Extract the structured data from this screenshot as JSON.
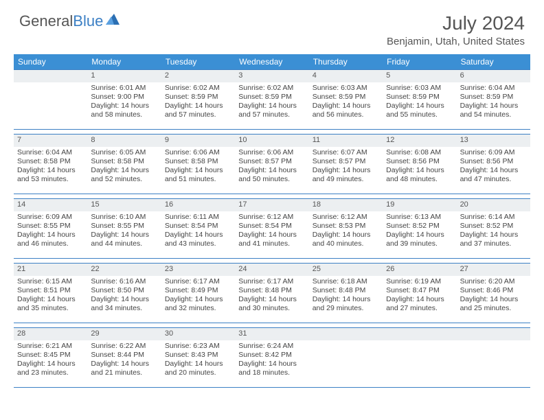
{
  "logo": {
    "text1": "General",
    "text2": "Blue"
  },
  "title": "July 2024",
  "location": "Benjamin, Utah, United States",
  "colors": {
    "header_bg": "#3b8fd4",
    "header_text": "#ffffff",
    "border": "#3b7fc4",
    "daynum_bg": "#eceff1",
    "text": "#444444"
  },
  "day_names": [
    "Sunday",
    "Monday",
    "Tuesday",
    "Wednesday",
    "Thursday",
    "Friday",
    "Saturday"
  ],
  "weeks": [
    [
      {
        "n": "",
        "sr": "",
        "ss": "",
        "dl": ""
      },
      {
        "n": "1",
        "sr": "Sunrise: 6:01 AM",
        "ss": "Sunset: 9:00 PM",
        "dl": "Daylight: 14 hours and 58 minutes."
      },
      {
        "n": "2",
        "sr": "Sunrise: 6:02 AM",
        "ss": "Sunset: 8:59 PM",
        "dl": "Daylight: 14 hours and 57 minutes."
      },
      {
        "n": "3",
        "sr": "Sunrise: 6:02 AM",
        "ss": "Sunset: 8:59 PM",
        "dl": "Daylight: 14 hours and 57 minutes."
      },
      {
        "n": "4",
        "sr": "Sunrise: 6:03 AM",
        "ss": "Sunset: 8:59 PM",
        "dl": "Daylight: 14 hours and 56 minutes."
      },
      {
        "n": "5",
        "sr": "Sunrise: 6:03 AM",
        "ss": "Sunset: 8:59 PM",
        "dl": "Daylight: 14 hours and 55 minutes."
      },
      {
        "n": "6",
        "sr": "Sunrise: 6:04 AM",
        "ss": "Sunset: 8:59 PM",
        "dl": "Daylight: 14 hours and 54 minutes."
      }
    ],
    [
      {
        "n": "7",
        "sr": "Sunrise: 6:04 AM",
        "ss": "Sunset: 8:58 PM",
        "dl": "Daylight: 14 hours and 53 minutes."
      },
      {
        "n": "8",
        "sr": "Sunrise: 6:05 AM",
        "ss": "Sunset: 8:58 PM",
        "dl": "Daylight: 14 hours and 52 minutes."
      },
      {
        "n": "9",
        "sr": "Sunrise: 6:06 AM",
        "ss": "Sunset: 8:58 PM",
        "dl": "Daylight: 14 hours and 51 minutes."
      },
      {
        "n": "10",
        "sr": "Sunrise: 6:06 AM",
        "ss": "Sunset: 8:57 PM",
        "dl": "Daylight: 14 hours and 50 minutes."
      },
      {
        "n": "11",
        "sr": "Sunrise: 6:07 AM",
        "ss": "Sunset: 8:57 PM",
        "dl": "Daylight: 14 hours and 49 minutes."
      },
      {
        "n": "12",
        "sr": "Sunrise: 6:08 AM",
        "ss": "Sunset: 8:56 PM",
        "dl": "Daylight: 14 hours and 48 minutes."
      },
      {
        "n": "13",
        "sr": "Sunrise: 6:09 AM",
        "ss": "Sunset: 8:56 PM",
        "dl": "Daylight: 14 hours and 47 minutes."
      }
    ],
    [
      {
        "n": "14",
        "sr": "Sunrise: 6:09 AM",
        "ss": "Sunset: 8:55 PM",
        "dl": "Daylight: 14 hours and 46 minutes."
      },
      {
        "n": "15",
        "sr": "Sunrise: 6:10 AM",
        "ss": "Sunset: 8:55 PM",
        "dl": "Daylight: 14 hours and 44 minutes."
      },
      {
        "n": "16",
        "sr": "Sunrise: 6:11 AM",
        "ss": "Sunset: 8:54 PM",
        "dl": "Daylight: 14 hours and 43 minutes."
      },
      {
        "n": "17",
        "sr": "Sunrise: 6:12 AM",
        "ss": "Sunset: 8:54 PM",
        "dl": "Daylight: 14 hours and 41 minutes."
      },
      {
        "n": "18",
        "sr": "Sunrise: 6:12 AM",
        "ss": "Sunset: 8:53 PM",
        "dl": "Daylight: 14 hours and 40 minutes."
      },
      {
        "n": "19",
        "sr": "Sunrise: 6:13 AM",
        "ss": "Sunset: 8:52 PM",
        "dl": "Daylight: 14 hours and 39 minutes."
      },
      {
        "n": "20",
        "sr": "Sunrise: 6:14 AM",
        "ss": "Sunset: 8:52 PM",
        "dl": "Daylight: 14 hours and 37 minutes."
      }
    ],
    [
      {
        "n": "21",
        "sr": "Sunrise: 6:15 AM",
        "ss": "Sunset: 8:51 PM",
        "dl": "Daylight: 14 hours and 35 minutes."
      },
      {
        "n": "22",
        "sr": "Sunrise: 6:16 AM",
        "ss": "Sunset: 8:50 PM",
        "dl": "Daylight: 14 hours and 34 minutes."
      },
      {
        "n": "23",
        "sr": "Sunrise: 6:17 AM",
        "ss": "Sunset: 8:49 PM",
        "dl": "Daylight: 14 hours and 32 minutes."
      },
      {
        "n": "24",
        "sr": "Sunrise: 6:17 AM",
        "ss": "Sunset: 8:48 PM",
        "dl": "Daylight: 14 hours and 30 minutes."
      },
      {
        "n": "25",
        "sr": "Sunrise: 6:18 AM",
        "ss": "Sunset: 8:48 PM",
        "dl": "Daylight: 14 hours and 29 minutes."
      },
      {
        "n": "26",
        "sr": "Sunrise: 6:19 AM",
        "ss": "Sunset: 8:47 PM",
        "dl": "Daylight: 14 hours and 27 minutes."
      },
      {
        "n": "27",
        "sr": "Sunrise: 6:20 AM",
        "ss": "Sunset: 8:46 PM",
        "dl": "Daylight: 14 hours and 25 minutes."
      }
    ],
    [
      {
        "n": "28",
        "sr": "Sunrise: 6:21 AM",
        "ss": "Sunset: 8:45 PM",
        "dl": "Daylight: 14 hours and 23 minutes."
      },
      {
        "n": "29",
        "sr": "Sunrise: 6:22 AM",
        "ss": "Sunset: 8:44 PM",
        "dl": "Daylight: 14 hours and 21 minutes."
      },
      {
        "n": "30",
        "sr": "Sunrise: 6:23 AM",
        "ss": "Sunset: 8:43 PM",
        "dl": "Daylight: 14 hours and 20 minutes."
      },
      {
        "n": "31",
        "sr": "Sunrise: 6:24 AM",
        "ss": "Sunset: 8:42 PM",
        "dl": "Daylight: 14 hours and 18 minutes."
      },
      {
        "n": "",
        "sr": "",
        "ss": "",
        "dl": ""
      },
      {
        "n": "",
        "sr": "",
        "ss": "",
        "dl": ""
      },
      {
        "n": "",
        "sr": "",
        "ss": "",
        "dl": ""
      }
    ]
  ]
}
